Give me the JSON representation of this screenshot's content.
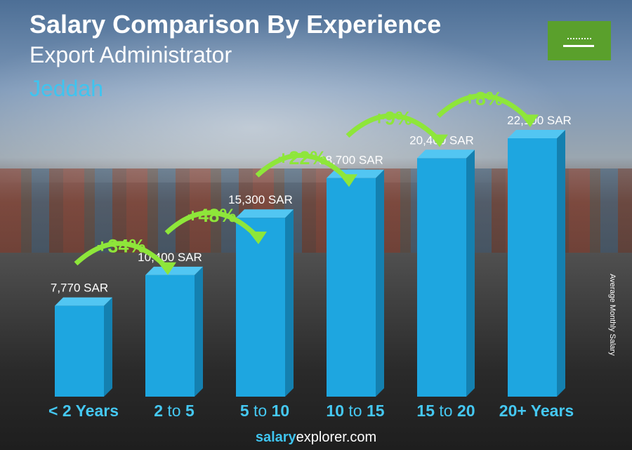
{
  "chart_data": {
    "type": "bar",
    "title": "Salary Comparison By Experience",
    "subtitle": "Export Administrator",
    "location": "Jeddah",
    "ylabel": "Average Monthly Salary",
    "categories": [
      [
        "< 2 Years"
      ],
      [
        "2",
        "to",
        "5"
      ],
      [
        "5",
        "to",
        "10"
      ],
      [
        "10",
        "to",
        "15"
      ],
      [
        "15",
        "to",
        "20"
      ],
      [
        "20+ Years"
      ]
    ],
    "values": [
      7770,
      10400,
      15300,
      18700,
      20400,
      22100
    ],
    "value_labels": [
      "7,770 SAR",
      "10,400 SAR",
      "15,300 SAR",
      "18,700 SAR",
      "20,400 SAR",
      "22,100 SAR"
    ],
    "increases": [
      "+34%",
      "+48%",
      "+22%",
      "+9%",
      "+8%"
    ],
    "unit": "SAR",
    "colors": {
      "bar": "#1ea6e0",
      "bar_side": "#1480b0",
      "bar_top": "#52c6f2",
      "label": "#45c8f2",
      "increase": "#8ee63a"
    }
  },
  "footer": {
    "brand_bold": "salary",
    "brand_rest": "explorer",
    "domain": ".com"
  },
  "flag": "saudi-arabia-flag"
}
